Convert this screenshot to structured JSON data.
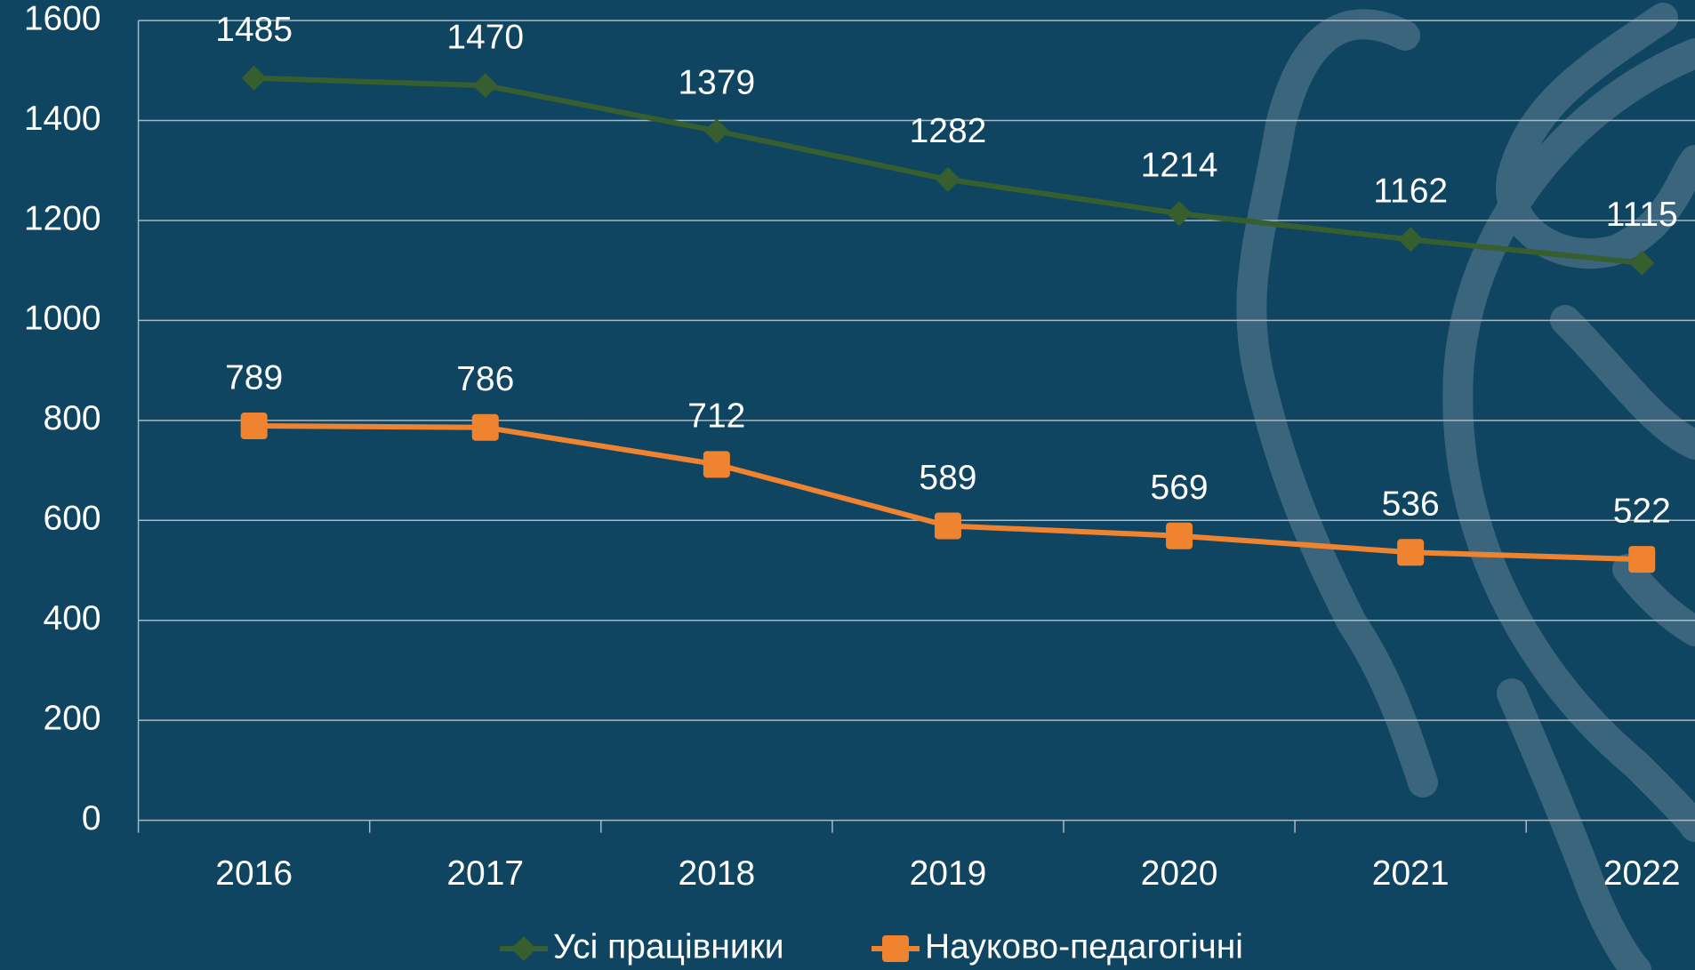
{
  "chart_data": {
    "type": "line",
    "categories": [
      "2016",
      "2017",
      "2018",
      "2019",
      "2020",
      "2021",
      "2022"
    ],
    "series": [
      {
        "name": "Усі працівники",
        "color": "#375e2e",
        "marker": "diamond",
        "values": [
          1485,
          1470,
          1379,
          1282,
          1214,
          1162,
          1115
        ]
      },
      {
        "name": "Науково-педагогічні",
        "color": "#f0832f",
        "marker": "square",
        "values": [
          789,
          786,
          712,
          589,
          569,
          536,
          522
        ]
      }
    ],
    "ylim": [
      0,
      1600
    ],
    "yticks": [
      0,
      200,
      400,
      600,
      800,
      1000,
      1200,
      1400,
      1600
    ],
    "grid": true,
    "legend": "bottom"
  }
}
